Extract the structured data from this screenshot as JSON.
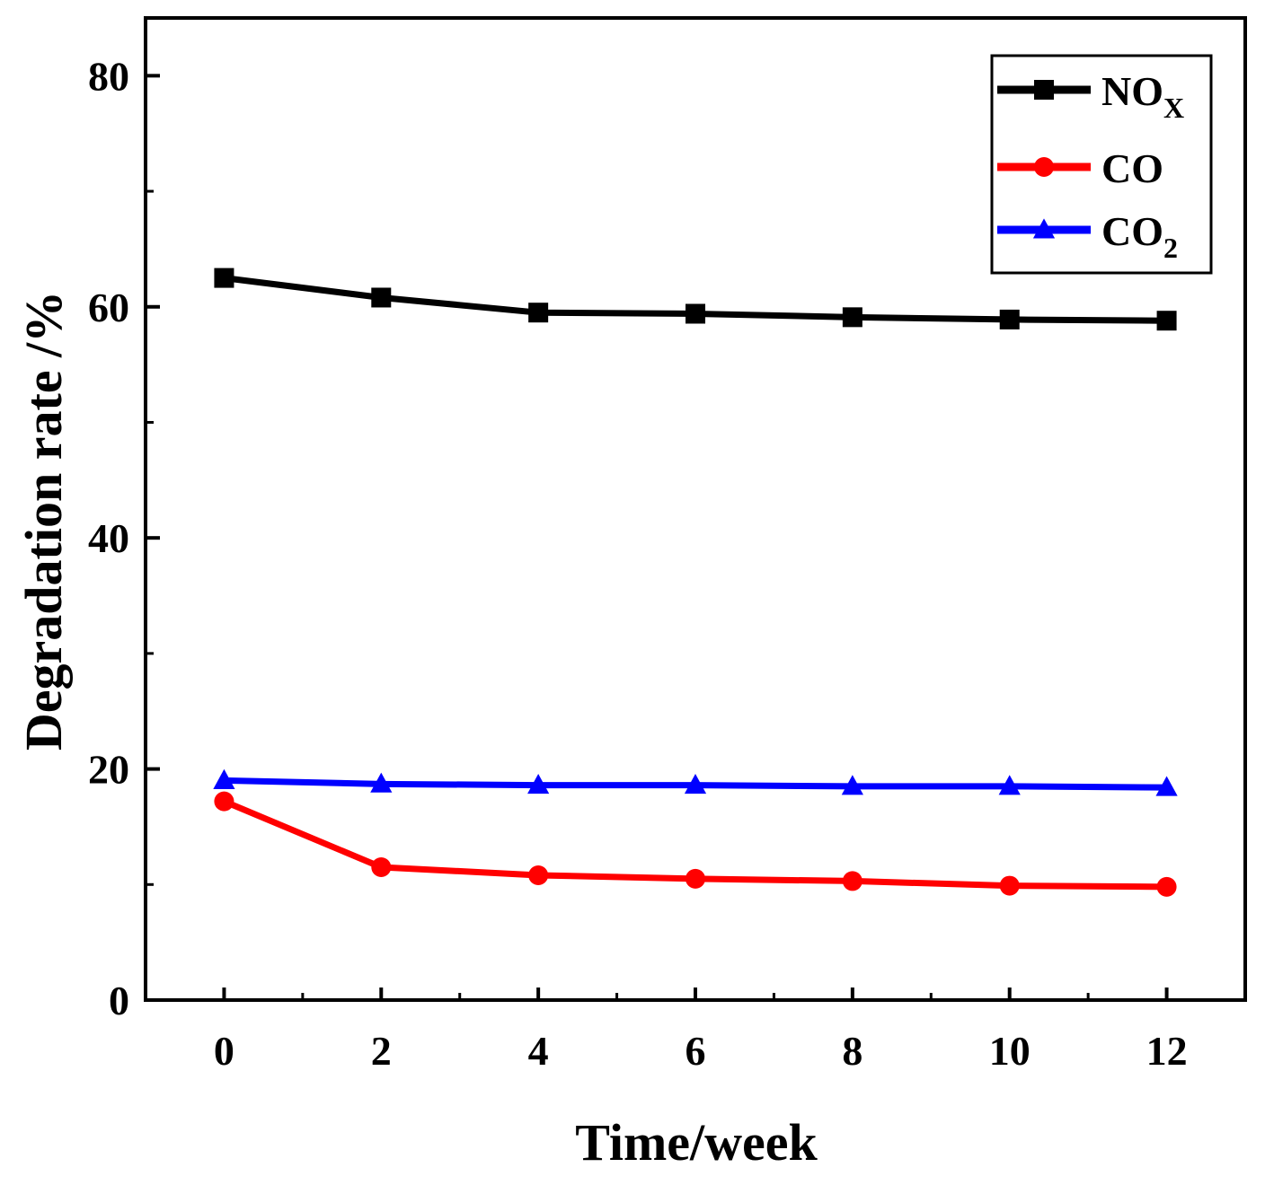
{
  "chart_data": {
    "type": "line",
    "title": "",
    "xlabel": "Time/week",
    "ylabel": "Degradation rate /%",
    "xlim": [
      -1,
      13
    ],
    "ylim": [
      0,
      85
    ],
    "x": [
      0,
      2,
      4,
      6,
      8,
      10,
      12
    ],
    "xticks": [
      "0",
      "2",
      "4",
      "6",
      "8",
      "10",
      "12"
    ],
    "yticks": [
      "0",
      "20",
      "40",
      "60",
      "80"
    ],
    "grid": false,
    "legend_position": "top-right",
    "series": [
      {
        "name": "NOx",
        "label_main": "NO",
        "label_sub": "X",
        "color": "#000000",
        "marker": "square",
        "values": [
          62.5,
          60.8,
          59.5,
          59.4,
          59.1,
          58.9,
          58.8
        ]
      },
      {
        "name": "CO",
        "label_main": "CO",
        "label_sub": "",
        "color": "#ff0000",
        "marker": "circle",
        "values": [
          17.2,
          11.5,
          10.8,
          10.5,
          10.3,
          9.9,
          9.8
        ]
      },
      {
        "name": "CO2",
        "label_main": "CO",
        "label_sub": "2",
        "color": "#0000ff",
        "marker": "triangle",
        "values": [
          19.0,
          18.7,
          18.6,
          18.6,
          18.5,
          18.5,
          18.4
        ]
      }
    ]
  }
}
